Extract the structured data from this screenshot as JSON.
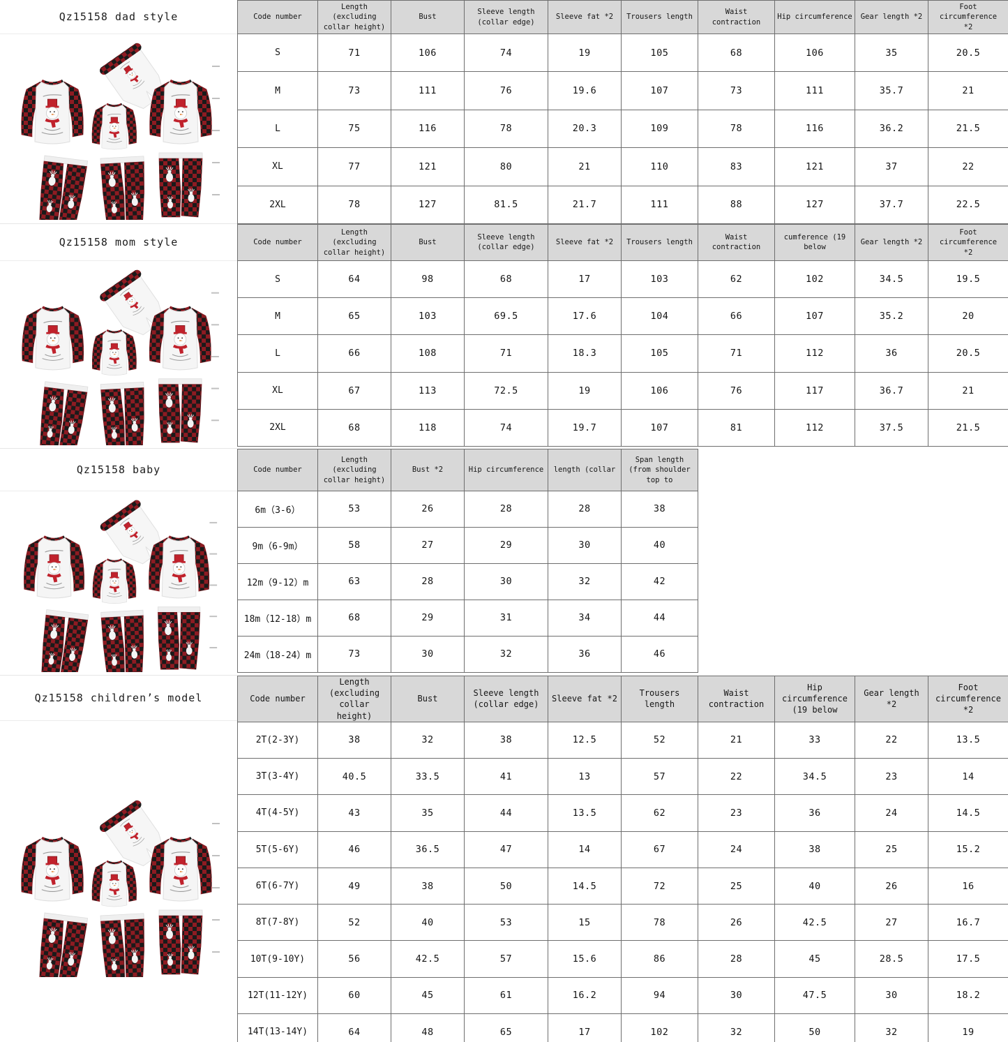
{
  "page_title": "Qz15158 family pajamas size chart",
  "colors": {
    "header_bg": "#d8d8d8",
    "grid_line": "#6e6e6e",
    "plaid_red": "#c03036",
    "plaid_dark_red": "#8e1b22",
    "plaid_black": "#1a1a1a",
    "shirt_body": "#f5f5f5",
    "ruler_mark": "#c0c0c0"
  },
  "illustration": {
    "name": "plaid-snowman-pajama-set",
    "description": "Three raglan tops with red buffalo plaid sleeves, white body with snowman print, and three plaid reindeer pants"
  },
  "sections": [
    {
      "id": "dad",
      "title": "Qz15158 dad style",
      "table": {
        "headers": [
          "Code number",
          "Length (excluding\ncollar height)",
          "Bust",
          "Sleeve length\n(collar edge)",
          "Sleeve fat *2",
          "Trousers length",
          "Waist contraction",
          "Hip circumference",
          "Gear length *2",
          "Foot circumference\n*2"
        ],
        "rows": [
          [
            "S",
            "71",
            "106",
            "74",
            "19",
            "105",
            "68",
            "106",
            "35",
            "20.5"
          ],
          [
            "M",
            "73",
            "111",
            "76",
            "19.6",
            "107",
            "73",
            "111",
            "35.7",
            "21"
          ],
          [
            "L",
            "75",
            "116",
            "78",
            "20.3",
            "109",
            "78",
            "116",
            "36.2",
            "21.5"
          ],
          [
            "XL",
            "77",
            "121",
            "80",
            "21",
            "110",
            "83",
            "121",
            "37",
            "22"
          ],
          [
            "2XL",
            "78",
            "127",
            "81.5",
            "21.7",
            "111",
            "88",
            "127",
            "37.7",
            "22.5"
          ]
        ]
      }
    },
    {
      "id": "mom",
      "title": "Qz15158 mom style",
      "table": {
        "headers": [
          "Code number",
          "Length (excluding\ncollar height)",
          "Bust",
          "Sleeve length\n(collar edge)",
          "Sleeve fat *2",
          "Trousers length",
          "Waist contraction",
          "cumference (19 below",
          "Gear length *2",
          "Foot circumference\n*2"
        ],
        "rows": [
          [
            "S",
            "64",
            "98",
            "68",
            "17",
            "103",
            "62",
            "102",
            "34.5",
            "19.5"
          ],
          [
            "M",
            "65",
            "103",
            "69.5",
            "17.6",
            "104",
            "66",
            "107",
            "35.2",
            "20"
          ],
          [
            "L",
            "66",
            "108",
            "71",
            "18.3",
            "105",
            "71",
            "112",
            "36",
            "20.5"
          ],
          [
            "XL",
            "67",
            "113",
            "72.5",
            "19",
            "106",
            "76",
            "117",
            "36.7",
            "21"
          ],
          [
            "2XL",
            "68",
            "118",
            "74",
            "19.7",
            "107",
            "81",
            "112",
            "37.5",
            "21.5"
          ]
        ]
      }
    },
    {
      "id": "baby",
      "title": "Qz15158 baby",
      "table": {
        "headers": [
          "Code number",
          "Length (excluding\ncollar height)",
          "Bust *2",
          "Hip circumference",
          "length (collar",
          "Span length\n(from shoulder\ntop to"
        ],
        "rows": [
          [
            "6m（3-6）",
            "53",
            "26",
            "28",
            "28",
            "38"
          ],
          [
            "9m（6-9m）",
            "58",
            "27",
            "29",
            "30",
            "40"
          ],
          [
            "12m（9-12）m",
            "63",
            "28",
            "30",
            "32",
            "42"
          ],
          [
            "18m（12-18）m",
            "68",
            "29",
            "31",
            "34",
            "44"
          ],
          [
            "24m（18-24）m",
            "73",
            "30",
            "32",
            "36",
            "46"
          ]
        ]
      }
    },
    {
      "id": "children",
      "title": "Qz15158 children’s model",
      "table": {
        "headers": [
          "Code number",
          "Length\n(excluding\ncollar height)",
          "Bust",
          "Sleeve length\n(collar edge)",
          "Sleeve fat *2",
          "Trousers\nlength",
          "Waist\ncontraction",
          "Hip\ncircumference\n(19 below",
          "Gear length *2",
          "Foot\ncircumference\n*2"
        ],
        "rows": [
          [
            "2T(2-3Y)",
            "38",
            "32",
            "38",
            "12.5",
            "52",
            "21",
            "33",
            "22",
            "13.5"
          ],
          [
            "3T(3-4Y)",
            "40.5",
            "33.5",
            "41",
            "13",
            "57",
            "22",
            "34.5",
            "23",
            "14"
          ],
          [
            "4T(4-5Y)",
            "43",
            "35",
            "44",
            "13.5",
            "62",
            "23",
            "36",
            "24",
            "14.5"
          ],
          [
            "5T(5-6Y)",
            "46",
            "36.5",
            "47",
            "14",
            "67",
            "24",
            "38",
            "25",
            "15.2"
          ],
          [
            "6T(6-7Y)",
            "49",
            "38",
            "50",
            "14.5",
            "72",
            "25",
            "40",
            "26",
            "16"
          ],
          [
            "8T(7-8Y)",
            "52",
            "40",
            "53",
            "15",
            "78",
            "26",
            "42.5",
            "27",
            "16.7"
          ],
          [
            "10T(9-10Y)",
            "56",
            "42.5",
            "57",
            "15.6",
            "86",
            "28",
            "45",
            "28.5",
            "17.5"
          ],
          [
            "12T(11-12Y)",
            "60",
            "45",
            "61",
            "16.2",
            "94",
            "30",
            "47.5",
            "30",
            "18.2"
          ],
          [
            "14T(13-14Y)",
            "64",
            "48",
            "65",
            "17",
            "102",
            "32",
            "50",
            "32",
            "19"
          ]
        ]
      }
    }
  ]
}
